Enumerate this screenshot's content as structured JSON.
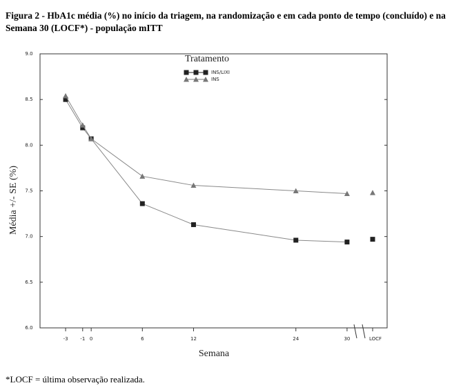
{
  "chart_data": {
    "type": "line",
    "title": "Figura 2 - HbA1c média (%) no início da triagem, na randomização e em cada ponto de tempo (concluído) e na Semana 30 (LOCF*) - população mITT",
    "legend_title": "Tratamento",
    "x_label": "Semana",
    "y_label": "Média    +/- SE (%)",
    "footnote": "*LOCF = última observação realizada.",
    "x": [
      -3,
      -1,
      0,
      6,
      12,
      24,
      30
    ],
    "xlim": [
      -6,
      34.7
    ],
    "xticks": [
      -3,
      -1,
      0,
      6,
      12,
      24,
      30
    ],
    "locf_label": "LOCF",
    "ylim": [
      6.0,
      9.0
    ],
    "yticks": [
      {
        "value": 6.0,
        "label": "6.0"
      },
      {
        "value": 6.5,
        "label": "6.5"
      },
      {
        "value": 7.0,
        "label": "7.0"
      },
      {
        "value": 7.5,
        "label": "7.5"
      },
      {
        "value": 8.0,
        "label": "8.0"
      },
      {
        "value": 8.5,
        "label": "8.5"
      },
      {
        "value": 9.0,
        "label": "9.0"
      }
    ],
    "series": [
      {
        "name": "INS/LIXI",
        "marker": "square",
        "color": "#222222",
        "values": [
          8.5,
          8.19,
          8.07,
          7.36,
          7.13,
          6.96,
          6.94
        ],
        "locf": 6.97
      },
      {
        "name": "INS",
        "marker": "triangle",
        "color": "#777777",
        "values": [
          8.54,
          8.22,
          8.07,
          7.66,
          7.56,
          7.5,
          7.47
        ],
        "locf": 7.48
      }
    ]
  }
}
